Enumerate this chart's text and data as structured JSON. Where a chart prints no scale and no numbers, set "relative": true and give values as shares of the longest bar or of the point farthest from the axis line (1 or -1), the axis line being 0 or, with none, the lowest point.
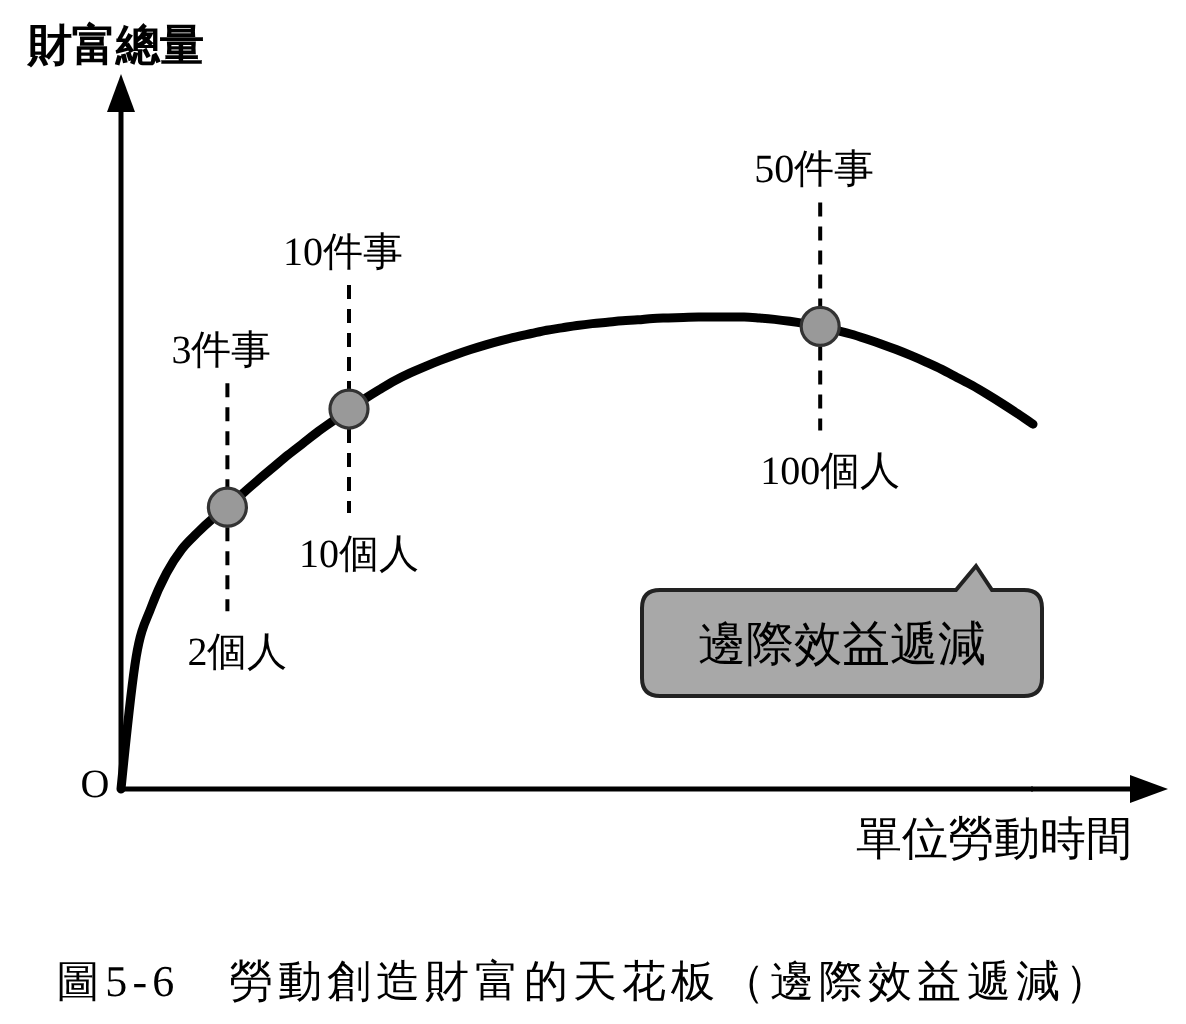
{
  "chart_data": {
    "type": "line",
    "title": "圖5-6　勞動創造財富的天花板（邊際效益遞減）",
    "xlabel": "單位勞動時間",
    "relative": true,
    "categories": [
      null,
      null,
      null,
      null,
      null,
      null,
      null,
      null,
      null,
      null,
      null,
      null,
      null,
      null,
      null,
      null,
      null,
      null,
      null,
      null,
      null,
      null,
      null,
      null,
      null,
      null,
      null,
      null,
      null,
      null,
      null,
      null,
      null,
      null,
      null,
      null,
      null,
      null,
      null,
      null,
      null,
      null,
      null,
      null,
      null,
      null,
      null,
      null,
      null,
      null,
      null,
      null,
      null,
      null,
      null,
      null,
      null,
      null,
      null,
      null,
      null
    ],
    "series": [
      {
        "color": "#000000",
        "values": [
          0,
          0.28,
          0.386,
          0.458,
          0.508,
          0.542,
          0.572,
          0.597,
          0.626,
          0.654,
          0.681,
          0.708,
          0.733,
          0.758,
          0.781,
          0.805,
          0.826,
          0.846,
          0.865,
          0.881,
          0.895,
          0.908,
          0.92,
          0.931,
          0.941,
          0.95,
          0.958,
          0.965,
          0.972,
          0.977,
          0.982,
          0.986,
          0.989,
          0.992,
          0.994,
          0.997,
          0.998,
          0.999,
          1,
          1,
          1,
          1,
          0.998,
          0.995,
          0.991,
          0.986,
          0.98,
          0.972,
          0.964,
          0.954,
          0.943,
          0.931,
          0.918,
          0.904,
          0.889,
          0.872,
          0.855,
          0.836,
          0.816,
          0.795,
          0.773
        ]
      }
    ],
    "annotations": [
      "O",
      "3件事",
      "2個人",
      "10件事",
      "10個人",
      "50件事",
      "100個人",
      "邊際效益遞減",
      "財富總量"
    ]
  }
}
